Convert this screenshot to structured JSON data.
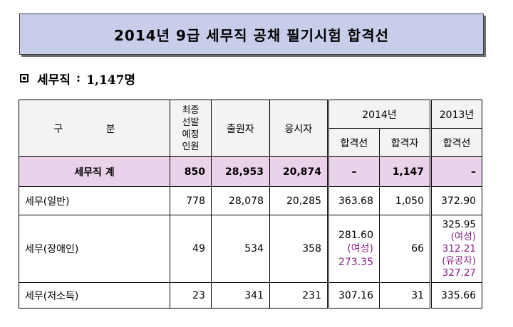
{
  "title": "2014년 9급 세무직 공채 필기시험 합격선",
  "section": {
    "label": "세무직",
    "colon": ":",
    "value": "1,147명"
  },
  "headers": {
    "category": "구 분",
    "quota_lines": [
      "최종",
      "선발",
      "예정",
      "인원"
    ],
    "applicants": "출원자",
    "examinees": "응시자",
    "y2014": "2014년",
    "y2013": "2013년",
    "cutoff": "합격선",
    "passers": "합격자",
    "cutoff2013": "합격선"
  },
  "rows": {
    "total": {
      "name": "세무직 계",
      "quota": "850",
      "applicants": "28,953",
      "examinees": "20,874",
      "cutoff": "–",
      "passers": "1,147",
      "prev": "–"
    },
    "general": {
      "name": "세무(일반)",
      "quota": "778",
      "applicants": "28,078",
      "examinees": "20,285",
      "cutoff": "363.68",
      "passers": "1,050",
      "prev": "372.90"
    },
    "disabled": {
      "name": "세무(장애인)",
      "quota": "49",
      "applicants": "534",
      "examinees": "358",
      "cutoff": "281.60",
      "cutoff_f_label": "(여성)",
      "cutoff_f": "273.35",
      "passers": "66",
      "prev": "325.95",
      "prev_f_label": "(여성)",
      "prev_f": "312.21",
      "prev_m_label": "(유공자)",
      "prev_m": "327.27"
    },
    "lowincome": {
      "name": "세무(저소득)",
      "quota": "23",
      "applicants": "341",
      "examinees": "231",
      "cutoff": "307.16",
      "passers": "31",
      "prev": "335.66"
    }
  }
}
